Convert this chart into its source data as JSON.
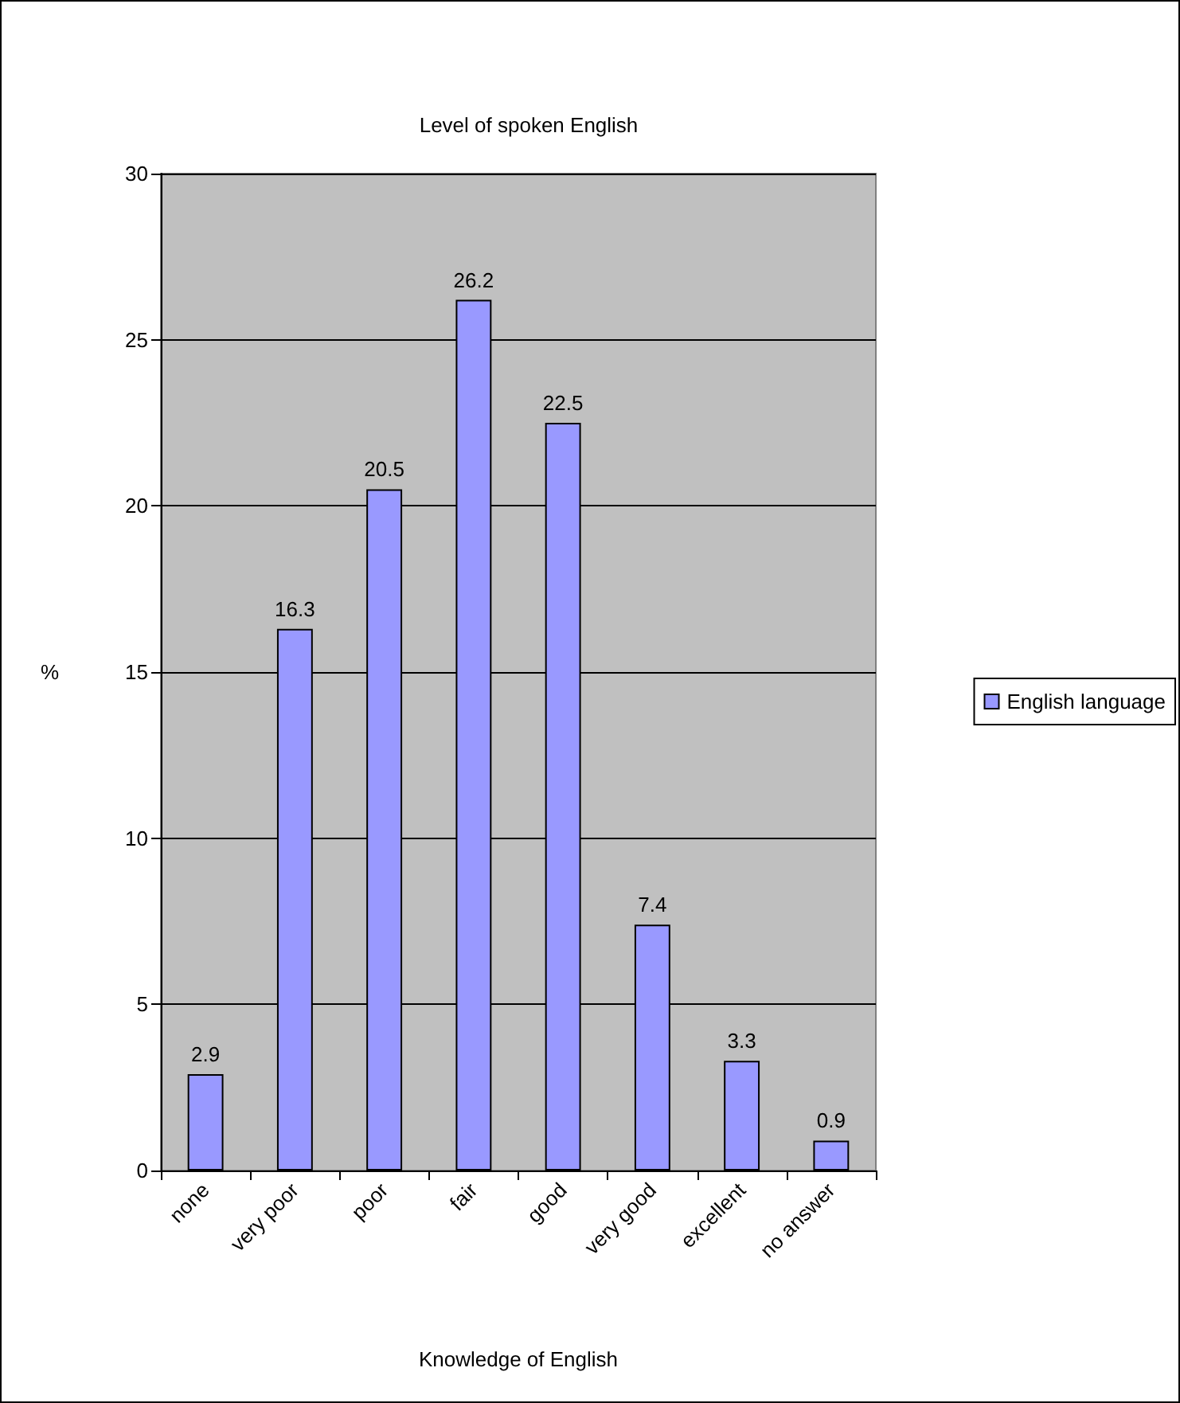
{
  "chart_data": {
    "type": "bar",
    "title": "Level of spoken English",
    "xlabel": "Knowledge of English",
    "ylabel": "%",
    "categories": [
      "none",
      "very poor",
      "poor",
      "fair",
      "good",
      "very good",
      "excellent",
      "no answer"
    ],
    "series": [
      {
        "name": "English language",
        "color": "#9999ff",
        "values": [
          2.9,
          16.3,
          20.5,
          26.2,
          22.5,
          7.4,
          3.3,
          0.9
        ]
      }
    ],
    "ylim": [
      0,
      30
    ],
    "yticks": [
      0,
      5,
      10,
      15,
      20,
      25,
      30
    ],
    "grid": "y",
    "legend": "right",
    "data_labels": true
  }
}
